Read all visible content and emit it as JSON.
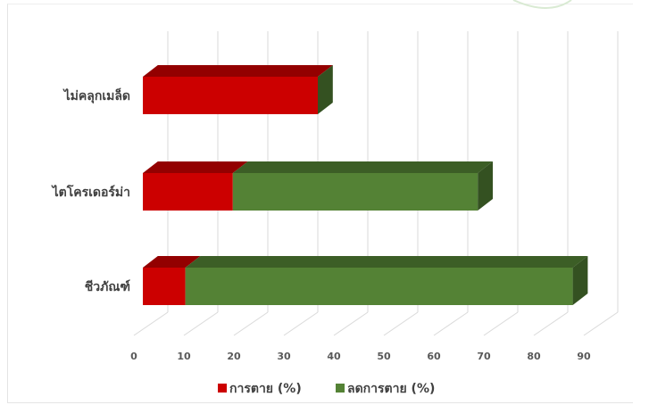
{
  "chart_data": {
    "type": "bar",
    "orientation": "horizontal",
    "stacked": true,
    "three_d": true,
    "categories": [
      "ไม่คลุกเมล็ด",
      "ไตโครเดอร์ม่า",
      "ชีวภัณฑ์"
    ],
    "series": [
      {
        "name": "การตาย (%)",
        "color": "#cc0000",
        "values": [
          35,
          18,
          8.5
        ]
      },
      {
        "name": "ลดการตาย (%)",
        "color": "#548235",
        "values": [
          0,
          49,
          77.5
        ]
      }
    ],
    "xlim": [
      0,
      90
    ],
    "xticks": [
      "0",
      "10",
      "20",
      "30",
      "40",
      "50",
      "60",
      "70",
      "80",
      "90"
    ],
    "grid": true,
    "legend_position": "bottom"
  }
}
